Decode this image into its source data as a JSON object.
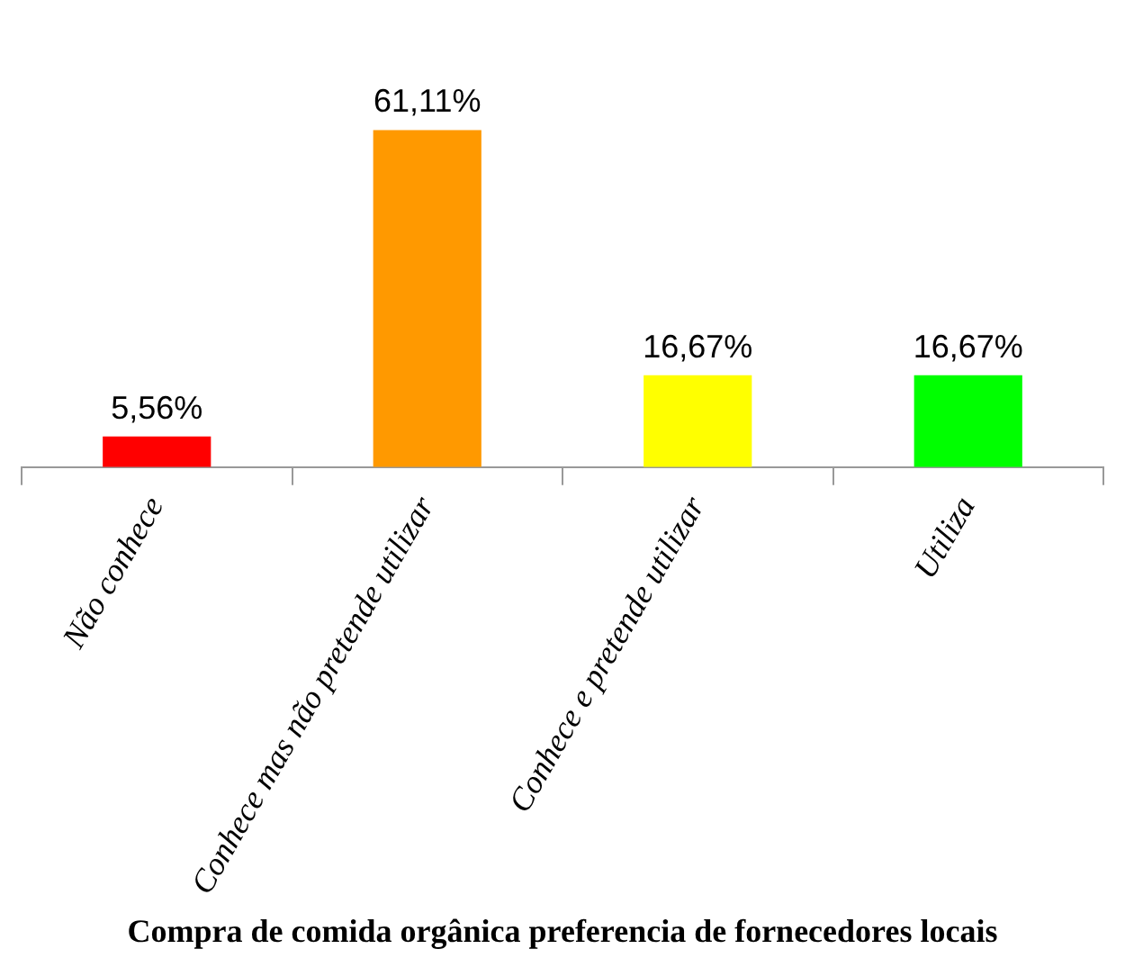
{
  "chart_data": {
    "type": "bar",
    "title": "Compra de comida orgânica preferencia de fornecedores locais",
    "categories": [
      "Não conhece",
      "Conhece mas não pretende utilizar",
      "Conhece e pretende utilizar",
      "Utiliza"
    ],
    "values": [
      5.56,
      61.11,
      16.67,
      16.67
    ],
    "colors": [
      "#ff0000",
      "#ff9900",
      "#ffff00",
      "#00ff00"
    ],
    "value_labels": [
      "5,56%",
      "61,11%",
      "16,67%",
      "16,67%"
    ]
  }
}
